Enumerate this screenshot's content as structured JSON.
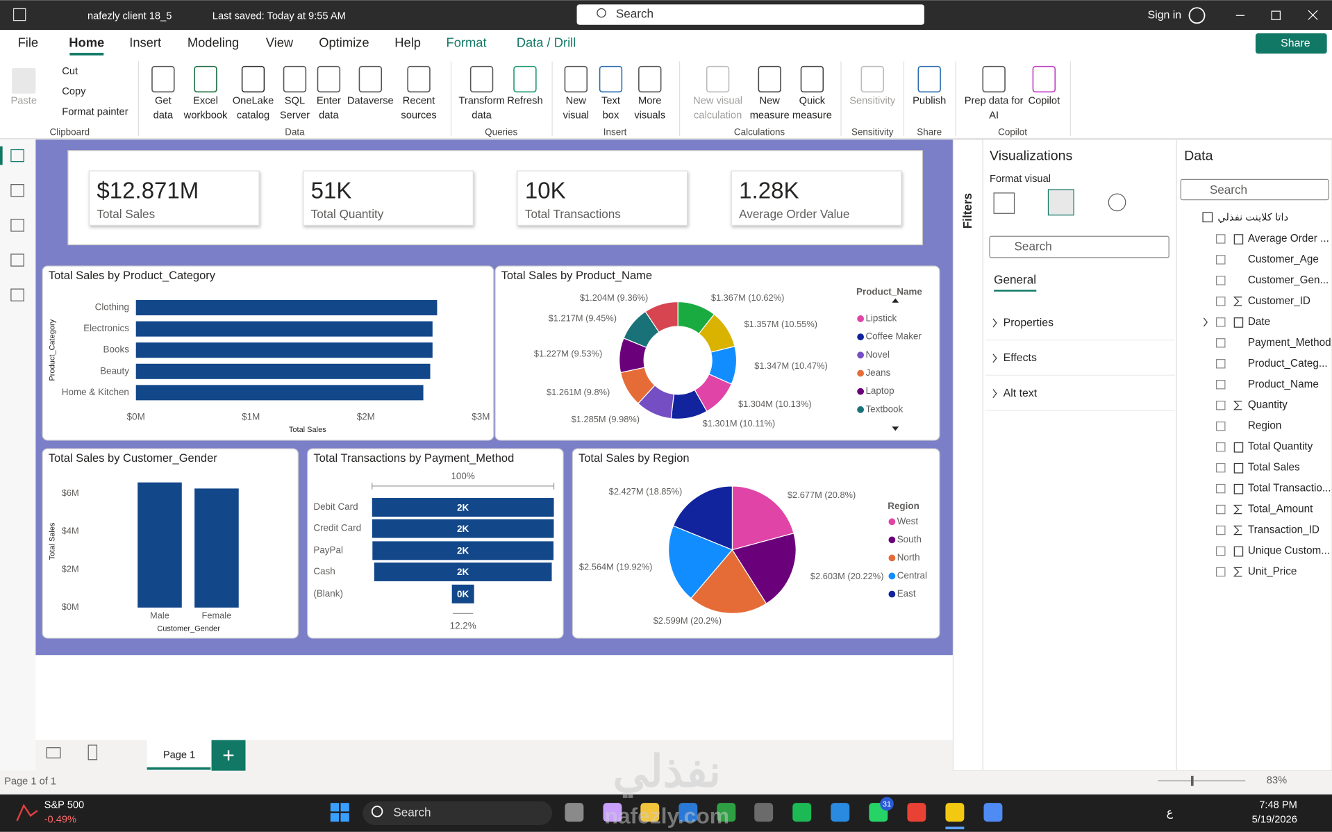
{
  "titlebar": {
    "filename": "nafezly client 18_5",
    "saved": "Last saved: Today at 9:55 AM",
    "search": "Search",
    "sign_in": "Sign in"
  },
  "tabs": [
    "File",
    "Home",
    "Insert",
    "Modeling",
    "View",
    "Optimize",
    "Help",
    "Format",
    "Data / Drill"
  ],
  "share": "Share",
  "clipboard": {
    "paste": "Paste",
    "cut": "Cut",
    "copy": "Copy",
    "format_painter": "Format painter"
  },
  "ribbon_buttons": [
    {
      "lines": [
        "Get",
        "data"
      ]
    },
    {
      "lines": [
        "Excel",
        "workbook"
      ]
    },
    {
      "lines": [
        "OneLake",
        "catalog"
      ]
    },
    {
      "lines": [
        "SQL",
        "Server"
      ]
    },
    {
      "lines": [
        "Enter",
        "data"
      ]
    },
    {
      "lines": [
        "Dataverse"
      ]
    },
    {
      "lines": [
        "Recent",
        "sources"
      ]
    },
    {
      "lines": [
        "Transform",
        "data"
      ]
    },
    {
      "lines": [
        "Refresh"
      ]
    },
    {
      "lines": [
        "New",
        "visual"
      ]
    },
    {
      "lines": [
        "Text",
        "box"
      ]
    },
    {
      "lines": [
        "More",
        "visuals"
      ]
    },
    {
      "lines": [
        "New visual",
        "calculation"
      ],
      "disabled": true
    },
    {
      "lines": [
        "New",
        "measure"
      ]
    },
    {
      "lines": [
        "Quick",
        "measure"
      ]
    },
    {
      "lines": [
        "Sensitivity"
      ],
      "disabled": true
    },
    {
      "lines": [
        "Publish"
      ]
    },
    {
      "lines": [
        "Prep data for",
        "AI"
      ]
    },
    {
      "lines": [
        "Copilot"
      ]
    }
  ],
  "ribbon_groups": [
    "Clipboard",
    "Data",
    "Queries",
    "Insert",
    "Calculations",
    "Sensitivity",
    "Share",
    "Copilot"
  ],
  "kpis": [
    {
      "value": "$12.871M",
      "label": "Total Sales"
    },
    {
      "value": "51K",
      "label": "Total Quantity"
    },
    {
      "value": "10K",
      "label": "Total Transactions"
    },
    {
      "value": "1.28K",
      "label": "Average Order Value"
    }
  ],
  "sales_by_category": {
    "type": "bar",
    "title": "Total Sales by Product_Category",
    "x_label": "Total Sales",
    "y_label": "Product_Category",
    "categories": [
      "Clothing",
      "Electronics",
      "Books",
      "Beauty",
      "Home & Kitchen"
    ],
    "values": [
      2.62,
      2.58,
      2.58,
      2.56,
      2.5
    ],
    "xlim": [
      0,
      3
    ],
    "xticks": [
      {
        "value": 0,
        "label": "$0M"
      },
      {
        "value": 1,
        "label": "$1M"
      },
      {
        "value": 2,
        "label": "$2M"
      },
      {
        "value": 3,
        "label": "$3M"
      }
    ],
    "color": "#12478a"
  },
  "sales_by_product": {
    "type": "donut",
    "title": "Total Sales by Product_Name",
    "legend_title": "Product_Name",
    "values": [
      10.62,
      10.55,
      10.47,
      10.13,
      10.11,
      9.98,
      9.8,
      9.53,
      9.45,
      9.36
    ],
    "value_labels": [
      "$1.367M (10.62%)",
      "$1.357M (10.55%)",
      "$1.347M (10.47%)",
      "$1.304M (10.13%)",
      "$1.301M (10.11%)",
      "$1.285M (9.98%)",
      "$1.261M (9.8%)",
      "$1.227M (9.53%)",
      "$1.217M (9.45%)",
      "$1.204M (9.36%)"
    ],
    "colors": [
      "#1AAB40",
      "#D9B300",
      "#118DFF",
      "#E044A7",
      "#12239E",
      "#744EC2",
      "#E66C37",
      "#6B007B",
      "#197278",
      "#D64550"
    ],
    "legend": [
      {
        "name": "Lipstick",
        "color": "#E044A7"
      },
      {
        "name": "Coffee Maker",
        "color": "#12239E"
      },
      {
        "name": "Novel",
        "color": "#744EC2"
      },
      {
        "name": "Jeans",
        "color": "#E66C37"
      },
      {
        "name": "Laptop",
        "color": "#6B007B"
      },
      {
        "name": "Textbook",
        "color": "#197278"
      }
    ]
  },
  "sales_by_gender": {
    "type": "column",
    "title": "Total Sales by Customer_Gender",
    "x_label": "Customer_Gender",
    "y_label": "Total Sales",
    "categories": [
      "Male",
      "Female"
    ],
    "values": [
      6.58,
      6.26
    ],
    "ylim": [
      0,
      6.7
    ],
    "yticks": [
      {
        "value": 0,
        "label": "$0M"
      },
      {
        "value": 2,
        "label": "$2M"
      },
      {
        "value": 4,
        "label": "$4M"
      },
      {
        "value": 6,
        "label": "$6M"
      }
    ],
    "color": "#12478a"
  },
  "transactions_by_payment": {
    "type": "funnel",
    "title": "Total Transactions by Payment_Method",
    "categories": [
      "Debit Card",
      "Credit Card",
      "PayPal",
      "Cash",
      "(Blank)"
    ],
    "values": [
      2450,
      2448,
      2440,
      2393,
      299
    ],
    "value_labels": [
      "2K",
      "2K",
      "2K",
      "2K",
      "0K"
    ],
    "top_label": "100%",
    "bottom_label": "12.2%",
    "color": "#12478a"
  },
  "sales_by_region": {
    "type": "pie",
    "title": "Total Sales by Region",
    "legend_title": "Region",
    "categories": [
      "West",
      "South",
      "North",
      "Central",
      "East"
    ],
    "values": [
      20.8,
      20.22,
      20.2,
      19.92,
      18.85
    ],
    "value_labels": [
      "$2.677M (20.8%)",
      "$2.603M (20.22%)",
      "$2.599M (20.2%)",
      "$2.564M (19.92%)",
      "$2.427M (18.85%)"
    ],
    "colors": [
      "#E044A7",
      "#6B007B",
      "#E66C37",
      "#118DFF",
      "#12239E"
    ]
  },
  "filters": "Filters",
  "visualizations": {
    "title": "Visualizations",
    "subtitle": "Format visual",
    "search": "Search",
    "tab": "General",
    "sections": [
      "Properties",
      "Effects",
      "Alt text"
    ]
  },
  "data_pane": {
    "title": "Data",
    "search": "Search",
    "table": "داتا كلاينت نفذلي",
    "fields": [
      "Average Order ...",
      "Customer_Age",
      "Customer_Gen...",
      "Customer_ID",
      "Date",
      "Payment_Method",
      "Product_Categ...",
      "Product_Name",
      "Quantity",
      "Region",
      "Total Quantity",
      "Total Sales",
      "Total Transactio...",
      "Total_Amount",
      "Transaction_ID",
      "Unique Custom...",
      "Unit_Price"
    ]
  },
  "page_tab": "Page 1",
  "status": {
    "page": "Page 1 of 1",
    "zoom": "83%"
  },
  "taskbar": {
    "ticker": "S&P 500",
    "change": "-0.49%",
    "search": "Search",
    "badge": "31",
    "lang": "ع",
    "time": "7:48 PM",
    "date": "5/19/2026"
  },
  "watermark": {
    "logo": "نفذلي",
    "site": "nafezly.com"
  }
}
